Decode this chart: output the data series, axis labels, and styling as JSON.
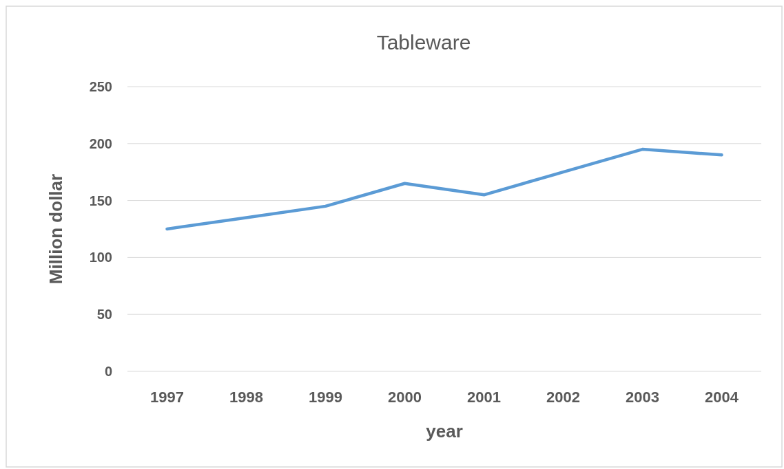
{
  "chart_data": {
    "type": "line",
    "title": "Tableware",
    "xlabel": "year",
    "ylabel": "Million dollar",
    "categories": [
      "1997",
      "1998",
      "1999",
      "2000",
      "2001",
      "2002",
      "2003",
      "2004"
    ],
    "series": [
      {
        "color": "#5b9bd5",
        "values": [
          125,
          135,
          145,
          165,
          155,
          175,
          195,
          190
        ]
      }
    ],
    "ylim": [
      0,
      250
    ],
    "yticks": [
      0,
      50,
      100,
      150,
      200,
      250
    ],
    "grid": "y",
    "marker": "none",
    "line_style": "solid"
  }
}
